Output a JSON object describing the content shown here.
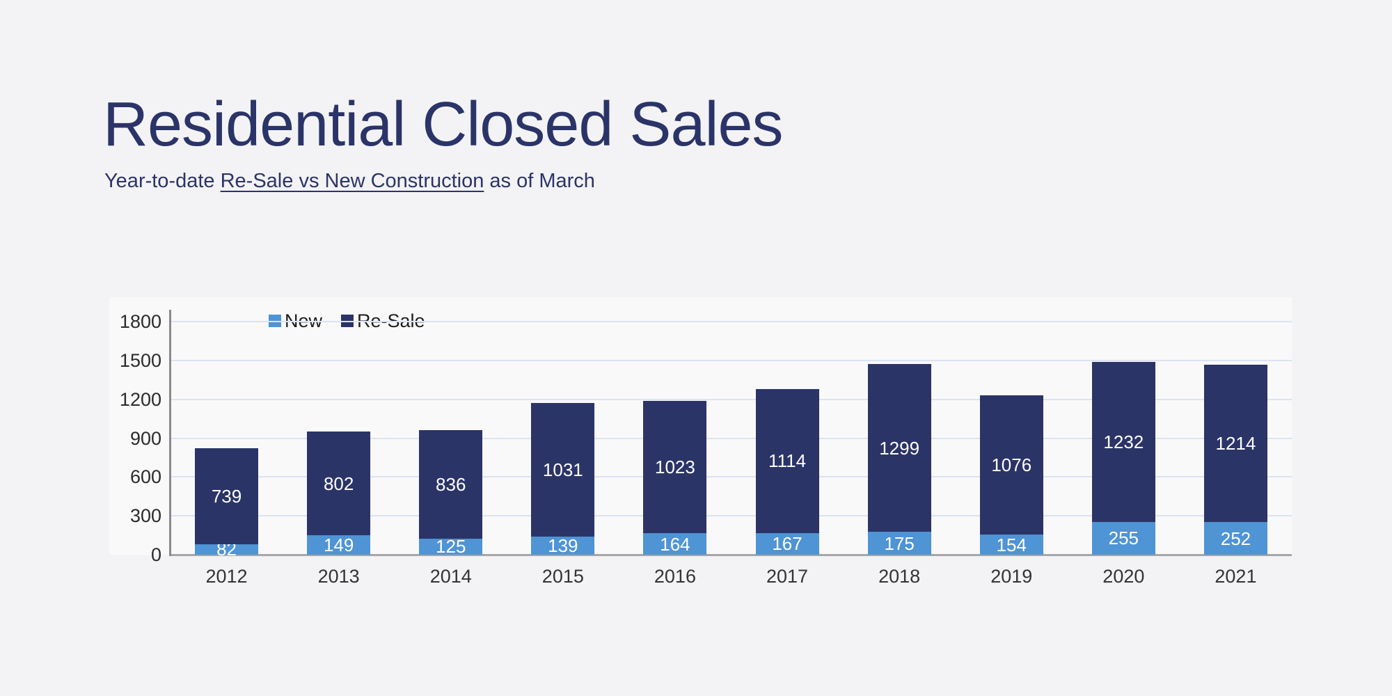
{
  "header": {
    "title": "Residential Closed Sales",
    "subtitle_prefix": "Year-to-date ",
    "subtitle_link": "Re-Sale vs New Construction",
    "subtitle_suffix": " as of March"
  },
  "colors": {
    "navy": "#2b3467",
    "light_blue": "#4f94d4",
    "title_text": "#2b3468",
    "page_background": "#f3f3f5",
    "gridline": "#dce2f1",
    "x_axis_line": "#a6a6a6",
    "y_axis_line": "#8a8a8a",
    "tick_label": "#2b2b2b",
    "value_label": "#ffffff"
  },
  "chart_data": {
    "type": "bar",
    "stacked": true,
    "title": "Residential Closed Sales",
    "subtitle": "Year-to-date Re-Sale vs New Construction as of March",
    "xlabel": "",
    "ylabel": "",
    "categories": [
      "2012",
      "2013",
      "2014",
      "2015",
      "2016",
      "2017",
      "2018",
      "2019",
      "2020",
      "2021"
    ],
    "series": [
      {
        "name": "New",
        "color_key": "light_blue",
        "values": [
          82,
          149,
          125,
          139,
          164,
          167,
          175,
          154,
          255,
          252
        ]
      },
      {
        "name": "Re-Sale",
        "color_key": "navy",
        "values": [
          739,
          802,
          836,
          1031,
          1023,
          1114,
          1299,
          1076,
          1232,
          1214
        ]
      }
    ],
    "totals": [
      821,
      951,
      961,
      1170,
      1187,
      1281,
      1474,
      1230,
      1487,
      1466
    ],
    "ylim": [
      0,
      1800
    ],
    "ytick_interval": 300,
    "yticks": [
      0,
      300,
      600,
      900,
      1200,
      1500,
      1800
    ],
    "grid": true,
    "legend_position": "top-left-inside",
    "value_labels": true
  }
}
